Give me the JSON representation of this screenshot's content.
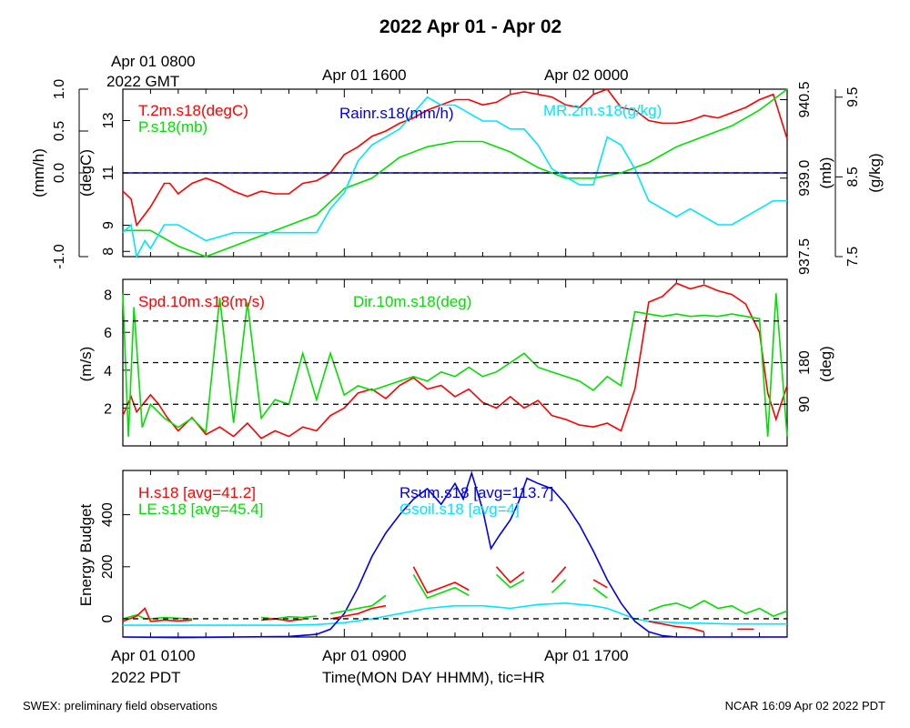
{
  "title": "2022 Apr 01 - Apr 02",
  "top_time_labels": {
    "gmt_start": "Apr 01 0800",
    "gmt_tz": "2022 GMT",
    "t1600": "Apr 01 1600",
    "t0000": "Apr 02 0000"
  },
  "bottom_time_labels": {
    "t0100": "Apr 01 0100",
    "pdt_tz": "2022 PDT",
    "t0900": "Apr 01 0900",
    "t1700": "Apr 01 1700",
    "axis_title": "Time(MON DAY HHMM), tic=HR"
  },
  "footer": {
    "left": "SWEX: preliminary field observations",
    "right": "NCAR 16:09 Apr 02 2022 PDT"
  },
  "colors": {
    "red": "#ff0000",
    "green": "#00e000",
    "blue": "#0000ee",
    "cyan": "#00e5ff",
    "black": "#000000"
  },
  "chart_data": [
    {
      "type": "line",
      "panel": "top",
      "x_unit": "hours since Apr 01 0100 PDT",
      "x_range": [
        0,
        24
      ],
      "axes": {
        "rain": {
          "label": "(mm/h)",
          "ticks": [
            "-1.0",
            "0.0",
            "0.5",
            "1.0"
          ],
          "range": [
            -1.0,
            1.0
          ]
        },
        "temp": {
          "label": "(degC)",
          "ticks": [
            "8",
            "9",
            "11",
            "13"
          ],
          "range": [
            7.8,
            14.2
          ]
        },
        "pres": {
          "label": "(mb)",
          "ticks": [
            "937.5",
            "939.0",
            "940.5"
          ],
          "range": [
            937.5,
            940.7
          ]
        },
        "mr": {
          "label": "(g/kg)",
          "ticks": [
            "7.5",
            "8.5",
            "9.5"
          ],
          "range": [
            7.5,
            9.6
          ]
        }
      },
      "series": [
        {
          "name": "T.2m.s18(degC)",
          "color": "red",
          "axis": "temp",
          "x": [
            0,
            0.3,
            0.5,
            1,
            1.5,
            1.7,
            2,
            2.5,
            3,
            3.5,
            4,
            4.5,
            5,
            5.5,
            6,
            6.5,
            7,
            7.5,
            8,
            8.5,
            9,
            9.5,
            10,
            10.5,
            11,
            11.5,
            12,
            12.5,
            13,
            13.5,
            14,
            14.5,
            15,
            15.5,
            16,
            16.5,
            17,
            17.5,
            18,
            18.5,
            19,
            19.5,
            20,
            20.5,
            21,
            21.5,
            22,
            22.5,
            23,
            23.5,
            24
          ],
          "y": [
            10.3,
            10.0,
            9.0,
            9.7,
            10.6,
            10.6,
            10.2,
            10.6,
            10.8,
            10.6,
            10.3,
            10.1,
            10.3,
            10.2,
            10.2,
            10.6,
            10.7,
            11.0,
            11.7,
            12.0,
            12.4,
            12.6,
            12.9,
            13.1,
            13.4,
            13.6,
            13.8,
            13.8,
            13.6,
            13.7,
            14.0,
            14.1,
            14.0,
            13.9,
            13.6,
            13.5,
            14.0,
            14.2,
            13.5,
            13.4,
            13.0,
            12.9,
            12.9,
            13.0,
            13.2,
            13.1,
            13.3,
            13.5,
            13.8,
            14.0,
            12.3
          ]
        },
        {
          "name": "Rainr.s18(mm/h)",
          "color": "blue",
          "axis": "rain",
          "x": [
            0,
            24
          ],
          "y": [
            0,
            0
          ]
        },
        {
          "name": "P.s18(mb)",
          "color": "green",
          "axis": "pres",
          "x": [
            0,
            1,
            2,
            3,
            3.5,
            4,
            5,
            6,
            7,
            8,
            9,
            10,
            11,
            12,
            13,
            14,
            15,
            16,
            17,
            18,
            19,
            20,
            21,
            22,
            23,
            24
          ],
          "y": [
            938.0,
            938.0,
            937.7,
            937.5,
            937.6,
            937.7,
            937.9,
            938.1,
            938.3,
            938.8,
            939.0,
            939.4,
            939.6,
            939.7,
            939.7,
            939.5,
            939.2,
            939.0,
            939.0,
            939.1,
            939.3,
            939.6,
            939.8,
            940.0,
            940.3,
            940.7
          ]
        },
        {
          "name": "MR.2m.s18(g/kg)",
          "color": "cyan",
          "axis": "mr",
          "x": [
            0,
            0.3,
            0.5,
            0.8,
            1,
            1.5,
            2,
            3,
            4,
            5,
            6,
            7,
            7.5,
            8,
            8.5,
            9,
            9.5,
            10,
            10.5,
            11,
            11.5,
            12,
            12.5,
            13,
            13.5,
            14,
            14.5,
            15,
            15.5,
            16,
            16.5,
            17,
            17.5,
            18,
            18.5,
            19,
            19.5,
            20,
            20.5,
            21,
            21.5,
            22,
            22.5,
            23,
            23.5,
            24
          ],
          "y": [
            7.8,
            7.9,
            7.5,
            7.7,
            7.6,
            7.9,
            7.9,
            7.7,
            7.8,
            7.8,
            7.8,
            7.8,
            8.1,
            8.3,
            8.7,
            8.9,
            9.0,
            9.1,
            9.3,
            9.5,
            9.4,
            9.4,
            9.3,
            9.2,
            9.2,
            9.1,
            9.1,
            8.9,
            8.6,
            8.5,
            8.4,
            8.4,
            9.0,
            8.9,
            8.6,
            8.2,
            8.1,
            8.0,
            8.1,
            8.0,
            7.9,
            7.9,
            8.0,
            8.1,
            8.2,
            8.2
          ]
        }
      ]
    },
    {
      "type": "line",
      "panel": "middle",
      "x_unit": "hours since Apr 01 0100 PDT",
      "x_range": [
        0,
        24
      ],
      "axes": {
        "spd": {
          "label": "(m/s)",
          "ticks": [
            "2",
            "4",
            "6",
            "8"
          ],
          "range": [
            0,
            8.8
          ]
        },
        "dir": {
          "label": "(deg)",
          "ticks": [
            "90",
            "180"
          ],
          "range": [
            0,
            360
          ]
        }
      },
      "reference_lines_deg": [
        90,
        180,
        270
      ],
      "series": [
        {
          "name": "Spd.10m.s18(m/s)",
          "color": "red",
          "axis": "spd",
          "x": [
            0,
            0.3,
            0.5,
            1,
            1.3,
            1.6,
            2,
            2.5,
            3,
            3.5,
            4,
            4.5,
            5,
            5.5,
            6,
            6.5,
            7,
            7.5,
            8,
            8.5,
            9,
            9.5,
            10,
            10.5,
            11,
            11.5,
            12,
            12.5,
            13,
            13.5,
            14,
            14.5,
            15,
            15.5,
            16,
            16.5,
            17,
            17.5,
            18,
            18.5,
            19,
            19.5,
            20,
            20.5,
            21,
            21.5,
            22,
            22.5,
            23,
            23.3,
            23.6,
            24
          ],
          "y": [
            1.6,
            2.6,
            1.8,
            2.7,
            2.2,
            1.5,
            0.8,
            1.5,
            0.6,
            1.0,
            0.5,
            1.2,
            0.4,
            0.8,
            0.5,
            1.0,
            0.8,
            1.6,
            2.0,
            2.8,
            3.0,
            2.5,
            3.2,
            3.6,
            3.0,
            3.2,
            2.6,
            3.0,
            2.3,
            2.0,
            2.6,
            2.0,
            2.4,
            1.6,
            1.4,
            1.1,
            1.0,
            1.2,
            0.8,
            3.0,
            7.6,
            7.9,
            8.6,
            8.3,
            8.5,
            8.2,
            8.0,
            7.5,
            6.0,
            2.8,
            1.4,
            3.2
          ]
        },
        {
          "name": "Dir.10m.s18(deg)",
          "color": "green",
          "axis": "dir",
          "x": [
            0,
            0.2,
            0.4,
            0.7,
            1,
            1.5,
            2,
            2.5,
            3,
            3.5,
            4,
            4.5,
            5,
            5.5,
            6,
            6.5,
            7,
            7.5,
            8,
            8.5,
            9,
            9.5,
            10,
            10.5,
            11,
            11.5,
            12,
            12.5,
            13,
            13.5,
            14,
            14.5,
            15,
            15.5,
            16,
            16.5,
            17,
            17.5,
            18,
            18.5,
            19,
            19.5,
            20,
            20.5,
            21,
            21.5,
            22,
            22.5,
            23,
            23.3,
            23.6,
            24
          ],
          "y": [
            330,
            20,
            300,
            40,
            90,
            60,
            40,
            60,
            30,
            320,
            50,
            310,
            60,
            100,
            90,
            200,
            100,
            200,
            110,
            130,
            120,
            130,
            140,
            150,
            140,
            160,
            150,
            170,
            150,
            160,
            180,
            200,
            170,
            160,
            150,
            140,
            120,
            150,
            130,
            290,
            285,
            280,
            285,
            280,
            282,
            280,
            285,
            280,
            275,
            20,
            330,
            20
          ]
        }
      ]
    },
    {
      "type": "line",
      "panel": "bottom",
      "x_unit": "hours since Apr 01 0100 PDT",
      "x_range": [
        0,
        24
      ],
      "ylabel": "Energy Budget",
      "ylim": [
        -70,
        570
      ],
      "y_ticks": [
        "0",
        "200",
        "400"
      ],
      "reference_lines": [
        0
      ],
      "series": [
        {
          "name": "H.s18",
          "legend": "H.s18 [avg=41.2]",
          "color": "red",
          "segments": [
            {
              "x": [
                0,
                0.5,
                0.8,
                1,
                1.5,
                2,
                2.5
              ],
              "y": [
                -10,
                10,
                40,
                -10,
                -5,
                -8,
                -5
              ]
            },
            {
              "x": [
                5,
                5.5,
                6,
                6.5
              ],
              "y": [
                -5,
                0,
                -8,
                -2
              ]
            },
            {
              "x": [
                7.5,
                8,
                8.5,
                9,
                9.5
              ],
              "y": [
                0,
                10,
                20,
                40,
                50
              ]
            },
            {
              "x": [
                10.5,
                11,
                11.5,
                12,
                12.5
              ],
              "y": [
                200,
                100,
                120,
                140,
                110
              ]
            },
            {
              "x": [
                13.5,
                14,
                14.5
              ],
              "y": [
                200,
                140,
                180
              ]
            },
            {
              "x": [
                15.5,
                16
              ],
              "y": [
                140,
                200
              ]
            },
            {
              "x": [
                17,
                17.5
              ],
              "y": [
                150,
                120
              ]
            },
            {
              "x": [
                19,
                19.5,
                20,
                20.5,
                21
              ],
              "y": [
                -10,
                -20,
                -30,
                -35,
                -50
              ]
            },
            {
              "x": [
                22.2,
                22.8
              ],
              "y": [
                -40,
                -40
              ]
            }
          ]
        },
        {
          "name": "LE.s18",
          "legend": "LE.s18 [avg=45.4]",
          "color": "green",
          "segments": [
            {
              "x": [
                0,
                0.5,
                0.8,
                1,
                1.5,
                2,
                2.5
              ],
              "y": [
                0,
                15,
                0,
                0,
                5,
                2,
                0
              ]
            },
            {
              "x": [
                5,
                5.5,
                6,
                6.5,
                7
              ],
              "y": [
                5,
                0,
                8,
                5,
                10
              ]
            },
            {
              "x": [
                7.5,
                8,
                8.5,
                9,
                9.5
              ],
              "y": [
                20,
                30,
                40,
                50,
                90
              ]
            },
            {
              "x": [
                10.5,
                11,
                11.5,
                12,
                12.5
              ],
              "y": [
                170,
                80,
                100,
                120,
                90
              ]
            },
            {
              "x": [
                13.5,
                14,
                14.5
              ],
              "y": [
                170,
                120,
                150
              ]
            },
            {
              "x": [
                15.5,
                16
              ],
              "y": [
                100,
                150
              ]
            },
            {
              "x": [
                17,
                17.5
              ],
              "y": [
                120,
                80
              ]
            },
            {
              "x": [
                19,
                19.5,
                20,
                20.5,
                21,
                21.5,
                22,
                22.5,
                23,
                23.5,
                24
              ],
              "y": [
                30,
                50,
                60,
                40,
                70,
                40,
                50,
                20,
                40,
                10,
                30
              ]
            }
          ]
        },
        {
          "name": "Rsum.s18",
          "legend": "Rsum.s18 [avg=113.7]",
          "color": "blue",
          "segments": [
            {
              "x": [
                0,
                2,
                4,
                6,
                7,
                7.5,
                8,
                8.5,
                9,
                9.5,
                10,
                10.5,
                11,
                11.5,
                12,
                12.3,
                12.6,
                13,
                13.3,
                13.6,
                14,
                14.3,
                14.6,
                15,
                15.5,
                16,
                16.5,
                17,
                17.5,
                18,
                18.5,
                19,
                19.5,
                20,
                22,
                24
              ],
              "y": [
                -70,
                -72,
                -70,
                -68,
                -60,
                -40,
                20,
                120,
                240,
                330,
                400,
                460,
                500,
                440,
                520,
                460,
                560,
                420,
                270,
                320,
                380,
                450,
                540,
                520,
                500,
                440,
                360,
                260,
                150,
                60,
                -10,
                -50,
                -65,
                -70,
                -70,
                -70
              ]
            }
          ]
        },
        {
          "name": "Gsoil.s18",
          "legend": "Gsoil.s18 [avg=4]",
          "color": "cyan",
          "segments": [
            {
              "x": [
                0,
                2,
                4,
                6,
                7,
                8,
                9,
                10,
                11,
                12,
                13,
                13.5,
                14,
                15,
                16,
                17,
                17.5,
                18,
                18.5,
                19,
                20,
                22,
                24
              ],
              "y": [
                -25,
                -25,
                -25,
                -25,
                -22,
                -15,
                0,
                20,
                40,
                50,
                50,
                45,
                40,
                55,
                60,
                50,
                40,
                20,
                0,
                -10,
                -15,
                -20,
                -20
              ]
            }
          ]
        }
      ]
    }
  ]
}
